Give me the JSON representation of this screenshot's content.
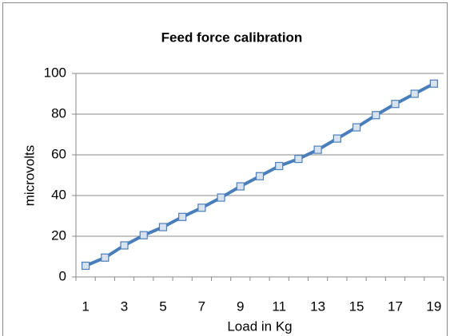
{
  "chart_data": {
    "type": "line",
    "title": "Feed force calibration",
    "ylabel": "microvolts",
    "xlabel": "Load in Kg",
    "categories": [
      1,
      null,
      3,
      null,
      5,
      null,
      7,
      null,
      9,
      null,
      11,
      null,
      13,
      null,
      15,
      null,
      17,
      null,
      19
    ],
    "series": [
      {
        "name": "microvolts",
        "color": "#4a7ebb",
        "values": [
          5.5,
          9.5,
          15.5,
          20.5,
          24.5,
          29.5,
          34,
          39,
          44.5,
          49.5,
          54.5,
          58,
          62.5,
          68,
          73.5,
          79.5,
          85,
          90,
          95
        ]
      }
    ],
    "ylim": [
      0,
      100
    ],
    "yticks": [
      0,
      20,
      40,
      60,
      80,
      100
    ],
    "grid": true
  }
}
